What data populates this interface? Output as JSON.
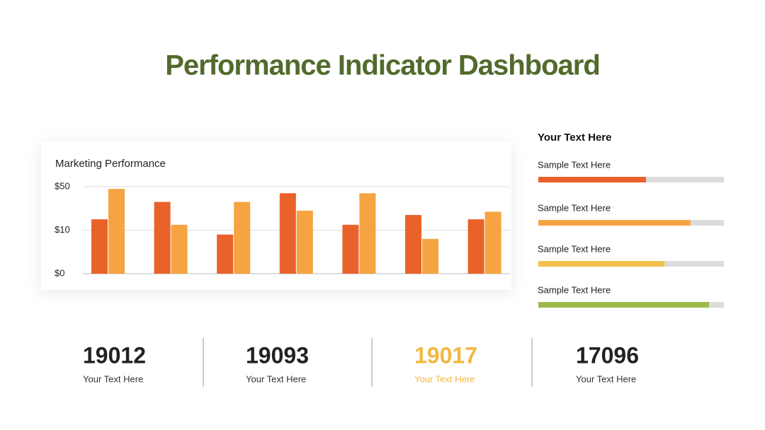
{
  "title": "Performance Indicator Dashboard",
  "chart_data": {
    "type": "bar",
    "title": "Marketing Performance",
    "categories": [
      null,
      null,
      null,
      null,
      null,
      null,
      null
    ],
    "series": [
      {
        "color": "#e9622a",
        "values": [
          20,
          36,
          9,
          44,
          15,
          24,
          20
        ]
      },
      {
        "color": "#f6a441",
        "values": [
          48,
          15,
          36,
          28,
          44,
          8,
          27
        ]
      }
    ],
    "ylim": [
      0,
      50
    ],
    "yticks": [
      {
        "value": 0,
        "label": "$0"
      },
      {
        "value": 10,
        "label": "$10"
      },
      {
        "value": 50,
        "label": "$50"
      }
    ],
    "grid": true
  },
  "progress": {
    "title": "Your Text Here",
    "items": [
      {
        "label": "Sample Text Here",
        "value": 0.58,
        "color": "#e9622a"
      },
      {
        "label": "Sample Text Here",
        "value": 0.82,
        "color": "#f6a441"
      },
      {
        "label": "Sample Text Here",
        "value": 0.68,
        "color": "#f2c04e"
      },
      {
        "label": "Sample Text Here",
        "value": 0.92,
        "color": "#9bbb4a"
      }
    ]
  },
  "kpis": [
    {
      "value": 19012,
      "label": "Your Text Here",
      "color": "#222222"
    },
    {
      "value": 19093,
      "label": "Your Text Here",
      "color": "#222222"
    },
    {
      "value": 19017,
      "label": "Your Text Here",
      "color": "#f2b843"
    },
    {
      "value": 17096,
      "label": "Your Text Here",
      "color": "#222222"
    }
  ]
}
